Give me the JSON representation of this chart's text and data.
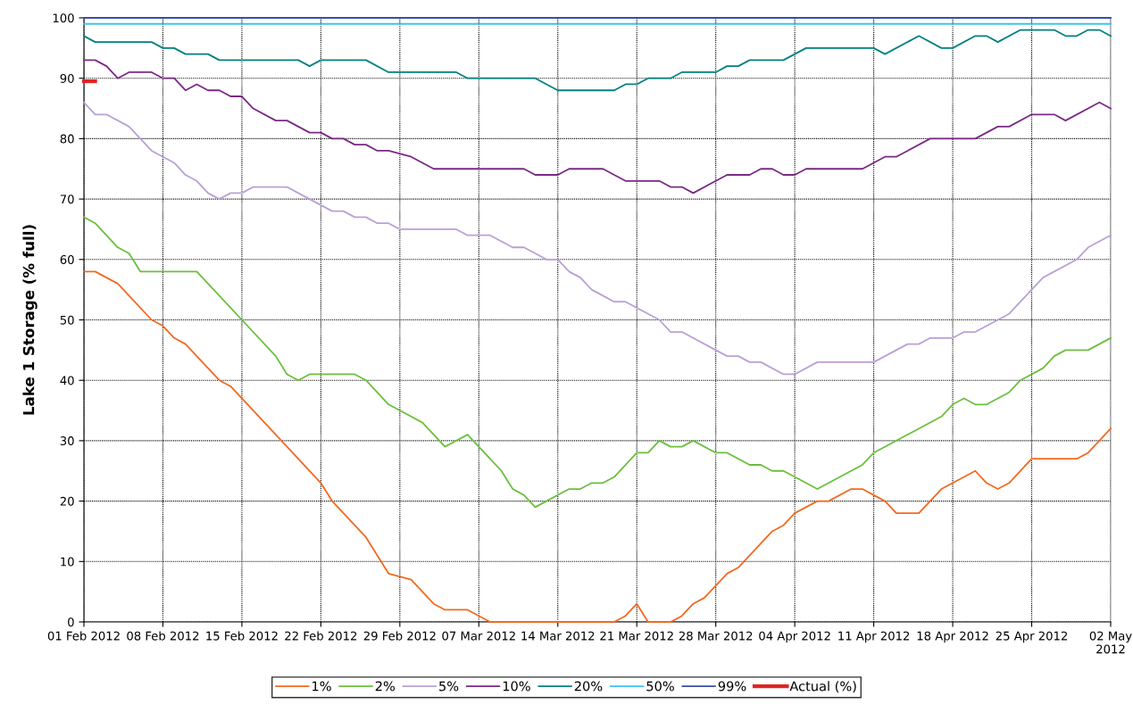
{
  "chart_data": {
    "type": "line",
    "ylabel": "Lake 1 Storage (% full)",
    "xlim": [
      "2012-02-01",
      "2012-05-02"
    ],
    "xticks": [
      {
        "value": "2012-02-01",
        "label": "01 Feb 2012"
      },
      {
        "value": "2012-02-08",
        "label": "08 Feb 2012"
      },
      {
        "value": "2012-02-15",
        "label": "15 Feb 2012"
      },
      {
        "value": "2012-02-22",
        "label": "22 Feb 2012"
      },
      {
        "value": "2012-02-29",
        "label": "29 Feb 2012"
      },
      {
        "value": "2012-03-07",
        "label": "07 Mar 2012"
      },
      {
        "value": "2012-03-14",
        "label": "14 Mar 2012"
      },
      {
        "value": "2012-03-21",
        "label": "21 Mar 2012"
      },
      {
        "value": "2012-03-28",
        "label": "28 Mar 2012"
      },
      {
        "value": "2012-04-04",
        "label": "04 Apr 2012"
      },
      {
        "value": "2012-04-11",
        "label": "11 Apr 2012"
      },
      {
        "value": "2012-04-18",
        "label": "18 Apr 2012"
      },
      {
        "value": "2012-04-25",
        "label": "25 Apr 2012"
      },
      {
        "value": "2012-05-02",
        "label": "02 May\n2012"
      }
    ],
    "ylim": [
      0,
      100
    ],
    "yticks": [
      0,
      10,
      20,
      30,
      40,
      50,
      60,
      70,
      80,
      90,
      100
    ],
    "grid": true,
    "legend": "bottom",
    "marker": "none",
    "line_style": "solid",
    "series": [
      {
        "name": "1%",
        "color": "#f26a21",
        "x": [
          "2012-02-01",
          "2012-02-02",
          "2012-02-04",
          "2012-02-07",
          "2012-02-08",
          "2012-02-09",
          "2012-02-10",
          "2012-02-13",
          "2012-02-14",
          "2012-02-22",
          "2012-02-23",
          "2012-02-26",
          "2012-02-28",
          "2012-03-01",
          "2012-03-03",
          "2012-03-04",
          "2012-03-06",
          "2012-03-08",
          "2012-03-19",
          "2012-03-20",
          "2012-03-21",
          "2012-03-22",
          "2012-03-24",
          "2012-03-25",
          "2012-03-26",
          "2012-03-27",
          "2012-03-29",
          "2012-03-30",
          "2012-04-02",
          "2012-04-03",
          "2012-04-04",
          "2012-04-06",
          "2012-04-07",
          "2012-04-09",
          "2012-04-10",
          "2012-04-11",
          "2012-04-12",
          "2012-04-13",
          "2012-04-15",
          "2012-04-17",
          "2012-04-20",
          "2012-04-21",
          "2012-04-22",
          "2012-04-23",
          "2012-04-25",
          "2012-04-29",
          "2012-04-30",
          "2012-05-02"
        ],
        "values": [
          58,
          58,
          56,
          50,
          49,
          47,
          46,
          40,
          39,
          23,
          20,
          14,
          8,
          7,
          3,
          2,
          2,
          0,
          0,
          1,
          3,
          0,
          0,
          1,
          3,
          4,
          8,
          9,
          15,
          16,
          18,
          20,
          20,
          22,
          22,
          21,
          20,
          18,
          18,
          22,
          25,
          23,
          22,
          23,
          27,
          27,
          28,
          32
        ]
      },
      {
        "name": "2%",
        "color": "#6cbf3e",
        "x": [
          "2012-02-01",
          "2012-02-02",
          "2012-02-04",
          "2012-02-05",
          "2012-02-06",
          "2012-02-11",
          "2012-02-15",
          "2012-02-18",
          "2012-02-19",
          "2012-02-20",
          "2012-02-21",
          "2012-02-25",
          "2012-02-26",
          "2012-02-28",
          "2012-02-29",
          "2012-03-02",
          "2012-03-04",
          "2012-03-06",
          "2012-03-09",
          "2012-03-10",
          "2012-03-11",
          "2012-03-12",
          "2012-03-15",
          "2012-03-16",
          "2012-03-17",
          "2012-03-18",
          "2012-03-19",
          "2012-03-21",
          "2012-03-22",
          "2012-03-23",
          "2012-03-24",
          "2012-03-25",
          "2012-03-26",
          "2012-03-28",
          "2012-03-29",
          "2012-03-31",
          "2012-04-01",
          "2012-04-02",
          "2012-04-03",
          "2012-04-06",
          "2012-04-10",
          "2012-04-11",
          "2012-04-17",
          "2012-04-18",
          "2012-04-19",
          "2012-04-20",
          "2012-04-21",
          "2012-04-23",
          "2012-04-24",
          "2012-04-26",
          "2012-04-27",
          "2012-04-28",
          "2012-04-30",
          "2012-05-02"
        ],
        "values": [
          67,
          66,
          62,
          61,
          58,
          58,
          50,
          44,
          41,
          40,
          41,
          41,
          40,
          36,
          35,
          33,
          29,
          31,
          25,
          22,
          21,
          19,
          22,
          22,
          23,
          23,
          24,
          28,
          28,
          30,
          29,
          29,
          30,
          28,
          28,
          26,
          26,
          25,
          25,
          22,
          26,
          28,
          34,
          36,
          37,
          36,
          36,
          38,
          40,
          42,
          44,
          45,
          45,
          47
        ]
      },
      {
        "name": "5%",
        "color": "#b9a0d6",
        "x": [
          "2012-02-01",
          "2012-02-02",
          "2012-02-03",
          "2012-02-05",
          "2012-02-07",
          "2012-02-08",
          "2012-02-09",
          "2012-02-10",
          "2012-02-11",
          "2012-02-12",
          "2012-02-13",
          "2012-02-14",
          "2012-02-15",
          "2012-02-16",
          "2012-02-19",
          "2012-02-20",
          "2012-02-21",
          "2012-02-22",
          "2012-02-23",
          "2012-02-24",
          "2012-02-25",
          "2012-02-26",
          "2012-02-27",
          "2012-02-28",
          "2012-02-29",
          "2012-03-05",
          "2012-03-06",
          "2012-03-08",
          "2012-03-10",
          "2012-03-11",
          "2012-03-13",
          "2012-03-14",
          "2012-03-15",
          "2012-03-16",
          "2012-03-17",
          "2012-03-18",
          "2012-03-19",
          "2012-03-20",
          "2012-03-23",
          "2012-03-24",
          "2012-03-25",
          "2012-03-28",
          "2012-03-29",
          "2012-03-30",
          "2012-03-31",
          "2012-04-01",
          "2012-04-03",
          "2012-04-04",
          "2012-04-06",
          "2012-04-11",
          "2012-04-14",
          "2012-04-15",
          "2012-04-16",
          "2012-04-18",
          "2012-04-19",
          "2012-04-20",
          "2012-04-23",
          "2012-04-25",
          "2012-04-26",
          "2012-04-29",
          "2012-04-30",
          "2012-05-02"
        ],
        "values": [
          86,
          84,
          84,
          82,
          78,
          77,
          76,
          74,
          73,
          71,
          70,
          71,
          71,
          72,
          72,
          71,
          70,
          69,
          68,
          68,
          67,
          67,
          66,
          66,
          65,
          65,
          64,
          64,
          62,
          62,
          60,
          60,
          58,
          57,
          55,
          54,
          53,
          53,
          50,
          48,
          48,
          45,
          44,
          44,
          43,
          43,
          41,
          41,
          43,
          43,
          46,
          46,
          47,
          47,
          48,
          48,
          51,
          55,
          57,
          60,
          62,
          64
        ]
      },
      {
        "name": "10%",
        "color": "#7a2a84",
        "x": [
          "2012-02-01",
          "2012-02-02",
          "2012-02-03",
          "2012-02-04",
          "2012-02-05",
          "2012-02-07",
          "2012-02-08",
          "2012-02-09",
          "2012-02-10",
          "2012-02-11",
          "2012-02-12",
          "2012-02-13",
          "2012-02-14",
          "2012-02-15",
          "2012-02-16",
          "2012-02-18",
          "2012-02-19",
          "2012-02-21",
          "2012-02-22",
          "2012-02-23",
          "2012-02-24",
          "2012-02-25",
          "2012-02-26",
          "2012-02-27",
          "2012-02-28",
          "2012-03-01",
          "2012-03-03",
          "2012-03-11",
          "2012-03-12",
          "2012-03-14",
          "2012-03-15",
          "2012-03-18",
          "2012-03-20",
          "2012-03-23",
          "2012-03-24",
          "2012-03-25",
          "2012-03-26",
          "2012-03-28",
          "2012-03-29",
          "2012-03-31",
          "2012-04-01",
          "2012-04-02",
          "2012-04-03",
          "2012-04-04",
          "2012-04-05",
          "2012-04-10",
          "2012-04-11",
          "2012-04-12",
          "2012-04-13",
          "2012-04-16",
          "2012-04-20",
          "2012-04-22",
          "2012-04-23",
          "2012-04-25",
          "2012-04-27",
          "2012-04-28",
          "2012-05-01",
          "2012-05-02"
        ],
        "values": [
          93,
          93,
          92,
          90,
          91,
          91,
          90,
          90,
          88,
          89,
          88,
          88,
          87,
          87,
          85,
          83,
          83,
          81,
          81,
          80,
          80,
          79,
          79,
          78,
          78,
          77,
          75,
          75,
          74,
          74,
          75,
          75,
          73,
          73,
          72,
          72,
          71,
          73,
          74,
          74,
          75,
          75,
          74,
          74,
          75,
          75,
          76,
          77,
          77,
          80,
          80,
          82,
          82,
          84,
          84,
          83,
          86,
          85
        ]
      },
      {
        "name": "20%",
        "color": "#008080",
        "x": [
          "2012-02-01",
          "2012-02-02",
          "2012-02-07",
          "2012-02-08",
          "2012-02-09",
          "2012-02-10",
          "2012-02-12",
          "2012-02-13",
          "2012-02-20",
          "2012-02-21",
          "2012-02-22",
          "2012-02-26",
          "2012-02-28",
          "2012-03-05",
          "2012-03-06",
          "2012-03-12",
          "2012-03-14",
          "2012-03-19",
          "2012-03-20",
          "2012-03-21",
          "2012-03-22",
          "2012-03-24",
          "2012-03-25",
          "2012-03-28",
          "2012-03-29",
          "2012-03-30",
          "2012-03-31",
          "2012-04-03",
          "2012-04-04",
          "2012-04-05",
          "2012-04-11",
          "2012-04-12",
          "2012-04-15",
          "2012-04-17",
          "2012-04-18",
          "2012-04-20",
          "2012-04-21",
          "2012-04-22",
          "2012-04-24",
          "2012-04-27",
          "2012-04-28",
          "2012-04-29",
          "2012-04-30",
          "2012-05-01",
          "2012-05-02"
        ],
        "values": [
          97,
          96,
          96,
          95,
          95,
          94,
          94,
          93,
          93,
          92,
          93,
          93,
          91,
          91,
          90,
          90,
          88,
          88,
          89,
          89,
          90,
          90,
          91,
          91,
          92,
          92,
          93,
          93,
          94,
          95,
          95,
          94,
          97,
          95,
          95,
          97,
          97,
          96,
          98,
          98,
          97,
          97,
          98,
          98,
          97
        ]
      },
      {
        "name": "50%",
        "color": "#3fc3f0",
        "x": [
          "2012-02-01",
          "2012-05-02"
        ],
        "values": [
          99,
          99
        ]
      },
      {
        "name": "99%",
        "color": "#3a4fa6",
        "x": [
          "2012-02-01",
          "2012-05-02"
        ],
        "values": [
          100,
          100
        ]
      },
      {
        "name": "Actual (%)",
        "color": "#e02424",
        "x": [
          "2012-02-01",
          "2012-02-02"
        ],
        "values": [
          89.5,
          89.5
        ]
      }
    ]
  }
}
